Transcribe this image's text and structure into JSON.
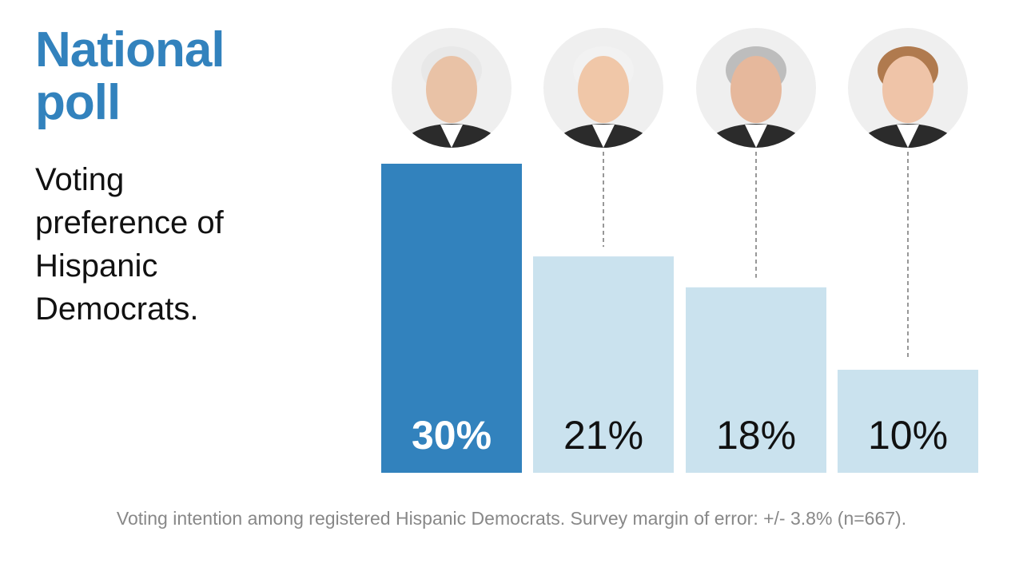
{
  "header": {
    "title": "National poll",
    "subtitle": "Voting preference of Hispanic Democrats."
  },
  "footnote": "Voting intention among registered Hispanic Democrats. Survey margin of error: +/- 3.8% (n=667).",
  "colors": {
    "highlight": "#3282bd",
    "other": "#cae2ee",
    "title": "#3282bd",
    "leader_line": "#777777"
  },
  "chart_data": {
    "type": "bar",
    "categories": [
      "candidate-photo-1",
      "candidate-photo-2",
      "candidate-photo-3",
      "candidate-photo-4"
    ],
    "values": [
      30,
      21,
      18,
      10
    ],
    "labels": [
      "30%",
      "21%",
      "18%",
      "10%"
    ],
    "highlighted_index": 0,
    "ylim": [
      0,
      30
    ],
    "grid": false,
    "legend": "none",
    "category_markers": "circular candidate photos above bars"
  }
}
